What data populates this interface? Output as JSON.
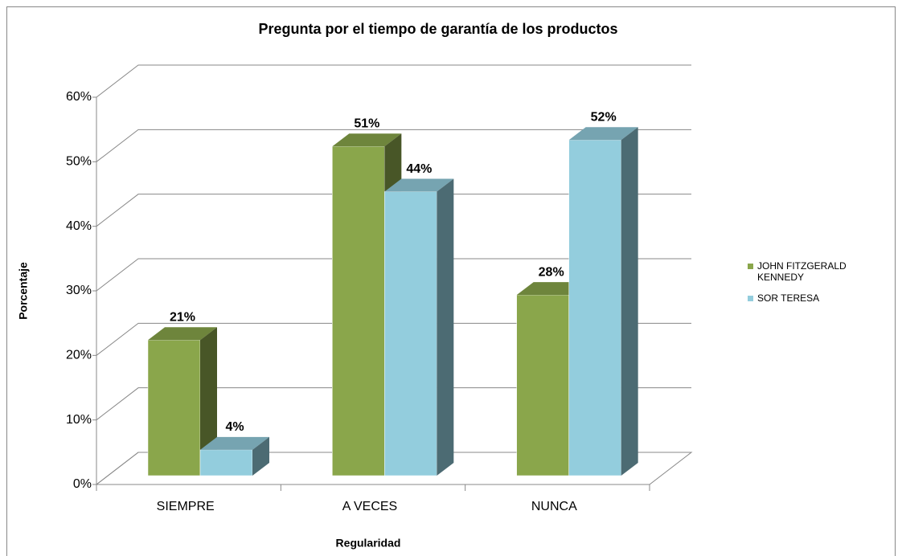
{
  "chart_data": {
    "type": "bar3d",
    "title": "Pregunta por el tiempo de garantía de los productos",
    "xlabel": "Regularidad",
    "ylabel": "Porcentaje",
    "categories": [
      "SIEMPRE",
      "A VECES",
      "NUNCA"
    ],
    "series": [
      {
        "name": "JOHN FITZGERALD KENNEDY",
        "color": "#8aa64b",
        "values": [
          21,
          51,
          28
        ],
        "value_labels": [
          "21%",
          "51%",
          "28%"
        ]
      },
      {
        "name": "SOR TERESA",
        "color": "#93cddd",
        "values": [
          4,
          44,
          52
        ],
        "value_labels": [
          "4%",
          "44%",
          "52%"
        ]
      }
    ],
    "ylim": [
      0,
      60
    ],
    "yticks": [
      {
        "value": 0,
        "label": "0%"
      },
      {
        "value": 10,
        "label": "10%"
      },
      {
        "value": 20,
        "label": "20%"
      },
      {
        "value": 30,
        "label": "30%"
      },
      {
        "value": 40,
        "label": "40%"
      },
      {
        "value": 50,
        "label": "50%"
      },
      {
        "value": 60,
        "label": "60%"
      }
    ],
    "grid": true,
    "legend": "right"
  }
}
